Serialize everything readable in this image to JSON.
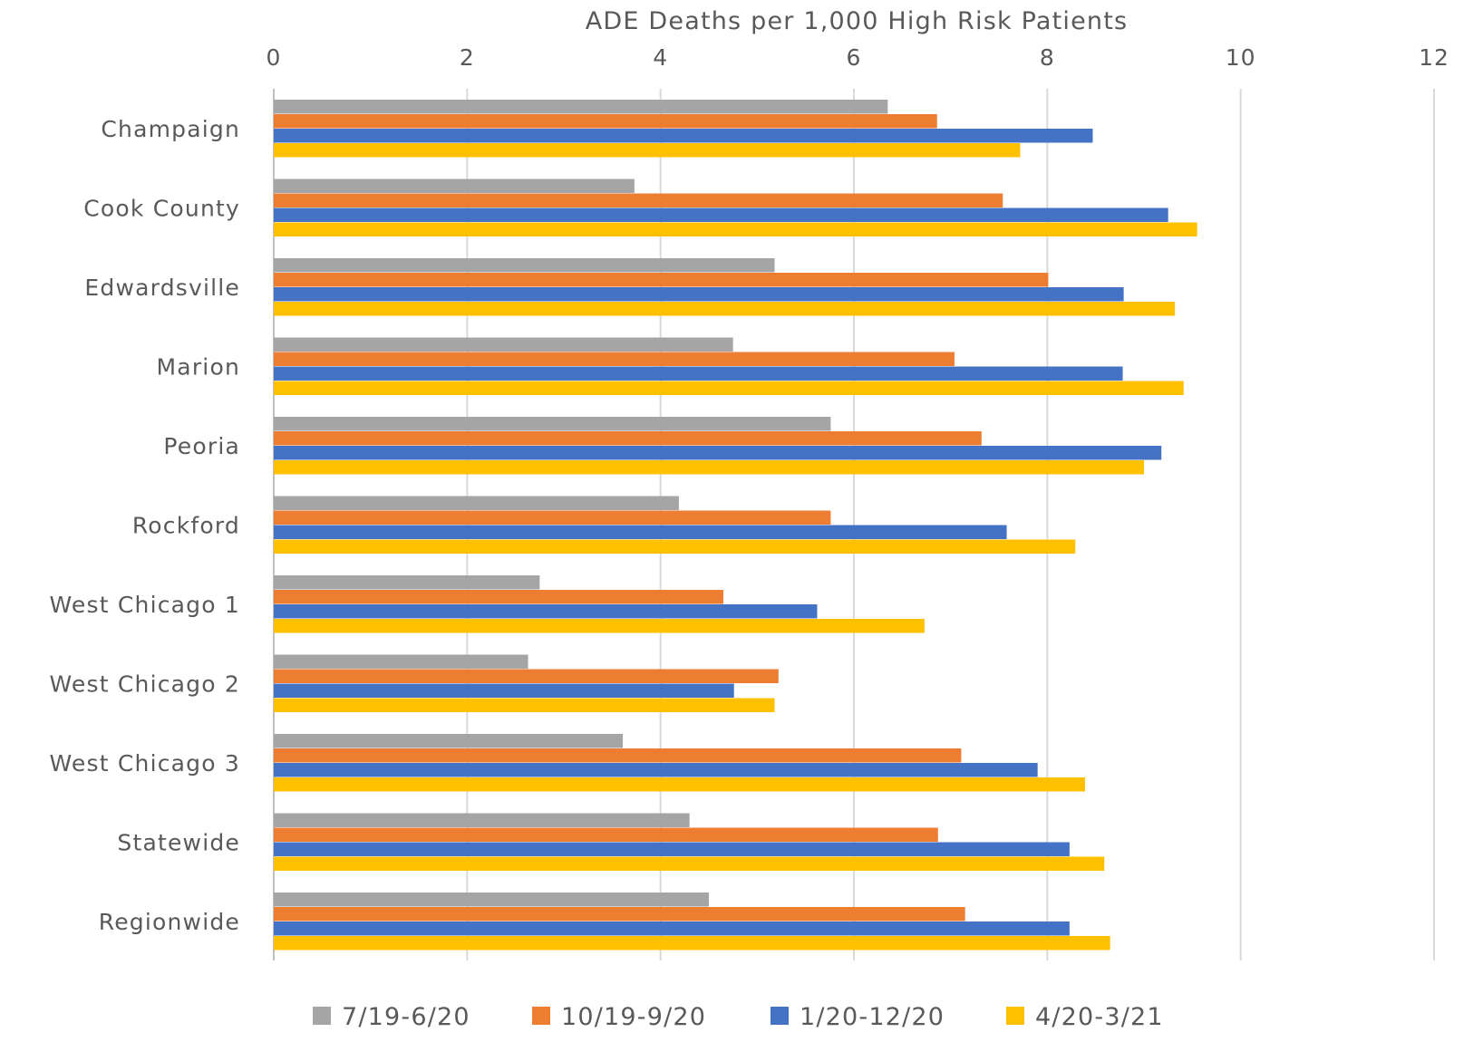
{
  "chart_data": {
    "type": "bar",
    "orientation": "horizontal",
    "title": "",
    "xlabel": "ADE Deaths per 1,000 High Risk Patients",
    "ylabel": "",
    "xlim": [
      0,
      12
    ],
    "xticks": [
      "0",
      "2",
      "4",
      "6",
      "8",
      "10",
      "12"
    ],
    "grid": true,
    "legend_position": "bottom",
    "categories": [
      "Champaign",
      "Cook County",
      "Edwardsville",
      "Marion",
      "Peoria",
      "Rockford",
      "West Chicago 1",
      "West Chicago 2",
      "West Chicago 3",
      "Statewide",
      "Regionwide"
    ],
    "series": [
      {
        "name": "7/19-6/20",
        "color": "#a5a5a5",
        "values": [
          6.35,
          3.73,
          5.18,
          4.75,
          5.76,
          4.19,
          2.75,
          2.63,
          3.61,
          4.3,
          4.5
        ]
      },
      {
        "name": "10/19-9/20",
        "color": "#ed7d31",
        "values": [
          6.86,
          7.54,
          8.01,
          7.04,
          7.32,
          5.76,
          4.65,
          5.22,
          7.11,
          6.87,
          7.15
        ]
      },
      {
        "name": "1/20-12/20",
        "color": "#4472c4",
        "values": [
          8.47,
          9.25,
          8.79,
          8.78,
          9.18,
          7.58,
          5.62,
          4.76,
          7.9,
          8.23,
          8.23
        ]
      },
      {
        "name": "4/20-3/21",
        "color": "#ffc000",
        "values": [
          7.72,
          9.55,
          9.32,
          9.41,
          9.0,
          8.29,
          6.73,
          5.18,
          8.39,
          8.59,
          8.65
        ]
      }
    ]
  }
}
